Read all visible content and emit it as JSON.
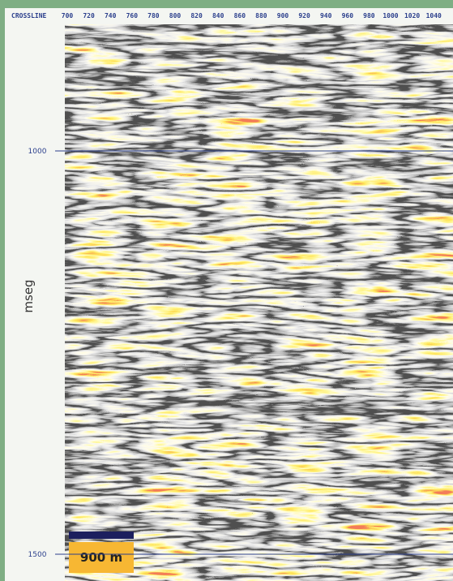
{
  "header": {
    "label": "CROSSLINE",
    "ticks": [
      700,
      720,
      740,
      760,
      780,
      800,
      820,
      840,
      860,
      880,
      900,
      920,
      940,
      960,
      980,
      1000,
      1020,
      1040
    ]
  },
  "axis": {
    "label": "mseg",
    "ticks": [
      1000,
      1500
    ]
  },
  "scale_bar": {
    "label": "900 m"
  }
}
